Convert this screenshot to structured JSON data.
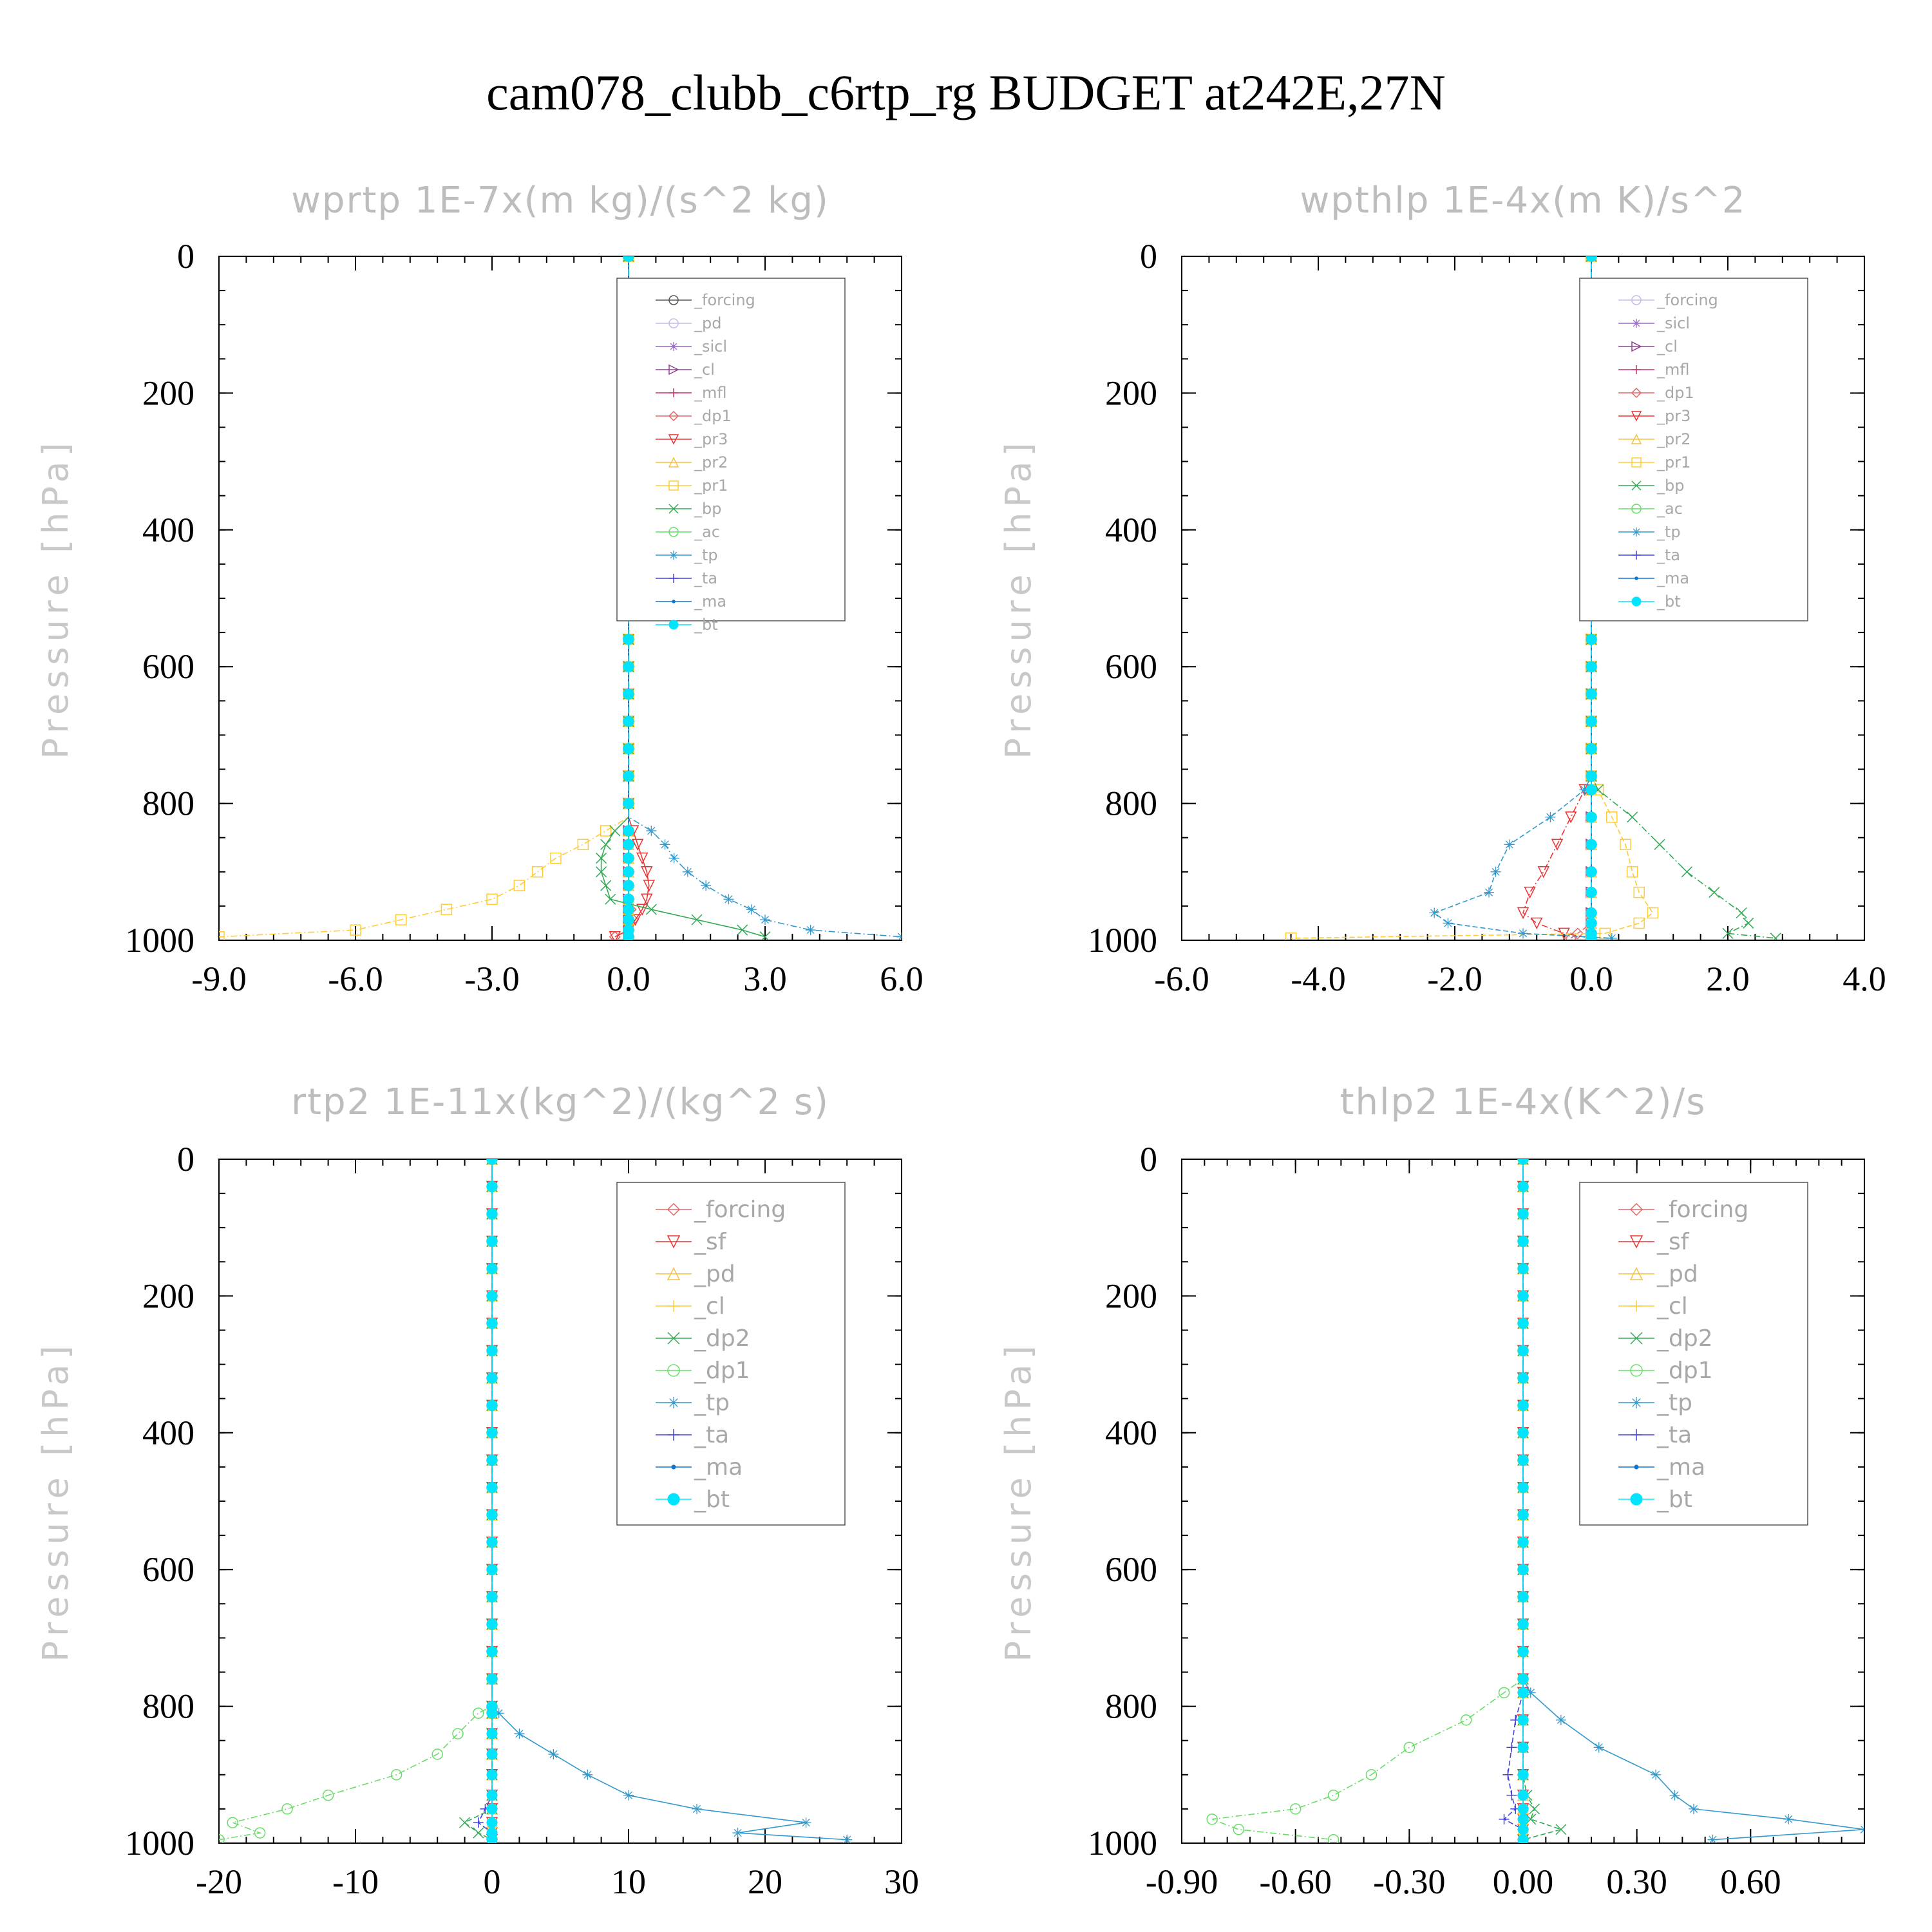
{
  "title": "cam078_clubb_c6rtp_rg  BUDGET at242E,27N",
  "chart_data": [
    {
      "type": "line",
      "title": "wprtp  1E-7x(m kg)/(s^2 kg)",
      "ylabel": "Pressure [hPa]",
      "xlim": [
        -9.0,
        6.0
      ],
      "ylim": [
        1000,
        0
      ],
      "y_inverted": true,
      "xticks": [
        -9.0,
        -6.0,
        -3.0,
        0.0,
        3.0,
        6.0
      ],
      "xtick_labels": [
        "-9.0",
        "-6.0",
        "-3.0",
        "0.0",
        "3.0",
        "6.0"
      ],
      "yticks": [
        0,
        200,
        400,
        600,
        800,
        1000
      ],
      "ytick_labels": [
        "0",
        "200",
        "400",
        "600",
        "800",
        "1000"
      ],
      "legend_position": "upper-right",
      "pressure": [
        840,
        860,
        880,
        900,
        920,
        940,
        955,
        970,
        985,
        995
      ],
      "series": [
        {
          "name": "_forcing",
          "color": "#555555",
          "marker": "o",
          "values": [
            0,
            0,
            0,
            0,
            0,
            0,
            0,
            0,
            0,
            0
          ]
        },
        {
          "name": "_pd",
          "color": "#c9b8e8",
          "marker": "o",
          "values": [
            0,
            0,
            0,
            0,
            0,
            0,
            0,
            0,
            0,
            0
          ]
        },
        {
          "name": "_sicl",
          "color": "#9966cc",
          "marker": "*",
          "values": [
            0,
            0,
            0,
            0,
            0,
            0,
            0,
            0,
            0,
            0
          ]
        },
        {
          "name": "_cl",
          "color": "#8e4490",
          "marker": ">",
          "values": [
            0,
            0,
            0,
            0,
            0,
            0,
            0,
            0,
            0,
            0
          ]
        },
        {
          "name": "_mfl",
          "color": "#cc3366",
          "marker": "+",
          "values": [
            0,
            0,
            0,
            0,
            0,
            0,
            0,
            0,
            0,
            0
          ]
        },
        {
          "name": "_dp1",
          "color": "#e06666",
          "marker": "d",
          "values": [
            0,
            0,
            0,
            0,
            0,
            0,
            0.05,
            0.1,
            0,
            -0.3
          ]
        },
        {
          "name": "_pr3",
          "color": "#ee3333",
          "marker": "v",
          "values": [
            0.1,
            0.2,
            0.3,
            0.4,
            0.45,
            0.4,
            0.3,
            0.15,
            0,
            -0.3
          ]
        },
        {
          "name": "_pr2",
          "color": "#f4c242",
          "marker": "^",
          "values": [
            0,
            0,
            0,
            0,
            0,
            0,
            0,
            0,
            0,
            0
          ]
        },
        {
          "name": "_pr1",
          "color": "#ffcc33",
          "marker": "s",
          "values": [
            -0.5,
            -1.0,
            -1.6,
            -2.0,
            -2.4,
            -3.0,
            -4.0,
            -5.0,
            -6.0,
            -9.0
          ]
        },
        {
          "name": "_bp",
          "color": "#33aa55",
          "marker": "x",
          "values": [
            -0.3,
            -0.5,
            -0.6,
            -0.6,
            -0.5,
            -0.4,
            0.5,
            1.5,
            2.5,
            3.0
          ]
        },
        {
          "name": "_ac",
          "color": "#66dd66",
          "marker": "o",
          "values": [
            0,
            0,
            0,
            0,
            0,
            0,
            0,
            0,
            0,
            0
          ]
        },
        {
          "name": "_tp",
          "color": "#3399cc",
          "marker": "*",
          "values": [
            0.5,
            0.8,
            1.0,
            1.3,
            1.7,
            2.2,
            2.7,
            3.0,
            4.0,
            6.0
          ]
        },
        {
          "name": "_ta",
          "color": "#4444dd",
          "marker": "+",
          "values": [
            0,
            0,
            0,
            0,
            0,
            0,
            0,
            0,
            0,
            0
          ]
        },
        {
          "name": "_ma",
          "color": "#1177cc",
          "marker": ".",
          "values": [
            0,
            0,
            0,
            0,
            0,
            0,
            0,
            0,
            0,
            0
          ]
        },
        {
          "name": "_bt",
          "color": "#00e5ff",
          "marker": "filled-o",
          "values": [
            0,
            0,
            0,
            0,
            0,
            0,
            0,
            0,
            0,
            0
          ]
        }
      ]
    },
    {
      "type": "line",
      "title": "wpthlp  1E-4x(m K)/s^2",
      "ylabel": "Pressure [hPa]",
      "xlim": [
        -6.0,
        4.0
      ],
      "ylim": [
        1000,
        0
      ],
      "y_inverted": true,
      "xticks": [
        -6.0,
        -4.0,
        -2.0,
        0.0,
        2.0,
        4.0
      ],
      "xtick_labels": [
        "-6.0",
        "-4.0",
        "-2.0",
        "0.0",
        "2.0",
        "4.0"
      ],
      "yticks": [
        0,
        200,
        400,
        600,
        800,
        1000
      ],
      "ytick_labels": [
        "0",
        "200",
        "400",
        "600",
        "800",
        "1000"
      ],
      "legend_position": "upper-right",
      "pressure": [
        780,
        820,
        860,
        900,
        930,
        960,
        975,
        990,
        997
      ],
      "series": [
        {
          "name": "_forcing",
          "color": "#c9b8e8",
          "marker": "o",
          "values": [
            0,
            0,
            0,
            0,
            0,
            0,
            0,
            0,
            0
          ]
        },
        {
          "name": "_sicl",
          "color": "#9966cc",
          "marker": "*",
          "values": [
            0,
            0,
            0,
            0,
            0,
            0,
            0,
            0,
            0
          ]
        },
        {
          "name": "_cl",
          "color": "#8e4490",
          "marker": ">",
          "values": [
            0,
            0,
            0,
            0,
            0,
            0,
            0,
            0,
            0
          ]
        },
        {
          "name": "_mfl",
          "color": "#cc3366",
          "marker": "+",
          "values": [
            0,
            0,
            0,
            0,
            0,
            0,
            0,
            0,
            0
          ]
        },
        {
          "name": "_dp1",
          "color": "#e06666",
          "marker": "d",
          "values": [
            0,
            0,
            0,
            0,
            0,
            0,
            0,
            -0.2,
            -0.3
          ]
        },
        {
          "name": "_pr3",
          "color": "#ee3333",
          "marker": "v",
          "values": [
            -0.1,
            -0.3,
            -0.5,
            -0.7,
            -0.9,
            -1.0,
            -0.8,
            -0.4,
            0
          ]
        },
        {
          "name": "_pr2",
          "color": "#f4c242",
          "marker": "^",
          "values": [
            0,
            0,
            0,
            0,
            0,
            0,
            0,
            0,
            0
          ]
        },
        {
          "name": "_pr1",
          "color": "#ffcc33",
          "marker": "s",
          "values": [
            0.1,
            0.3,
            0.5,
            0.6,
            0.7,
            0.9,
            0.7,
            0.2,
            -4.4
          ]
        },
        {
          "name": "_bp",
          "color": "#33aa55",
          "marker": "x",
          "values": [
            0.1,
            0.6,
            1.0,
            1.4,
            1.8,
            2.2,
            2.3,
            2.0,
            2.7
          ]
        },
        {
          "name": "_ac",
          "color": "#66dd66",
          "marker": "o",
          "values": [
            0,
            0,
            0,
            0,
            0,
            0,
            0,
            0,
            0
          ]
        },
        {
          "name": "_tp",
          "color": "#3399cc",
          "marker": "*",
          "values": [
            -0.1,
            -0.6,
            -1.2,
            -1.4,
            -1.5,
            -2.3,
            -2.1,
            -1.0,
            0.3
          ]
        },
        {
          "name": "_ta",
          "color": "#4444dd",
          "marker": "+",
          "values": [
            0,
            0,
            0,
            0,
            0,
            0,
            0,
            0,
            0
          ]
        },
        {
          "name": "_ma",
          "color": "#1177cc",
          "marker": ".",
          "values": [
            0,
            0,
            0,
            0,
            0,
            0,
            0,
            0,
            0
          ]
        },
        {
          "name": "_bt",
          "color": "#00e5ff",
          "marker": "filled-o",
          "values": [
            0,
            0,
            0,
            0,
            0,
            0,
            0,
            0,
            0
          ]
        }
      ]
    },
    {
      "type": "line",
      "title": "rtp2  1E-11x(kg^2)/(kg^2 s)",
      "ylabel": "Pressure [hPa]",
      "xlim": [
        -20,
        30
      ],
      "ylim": [
        1000,
        0
      ],
      "y_inverted": true,
      "xticks": [
        -20,
        -10,
        0,
        10,
        20,
        30
      ],
      "xtick_labels": [
        "-20",
        "-10",
        "0",
        "10",
        "20",
        "30"
      ],
      "yticks": [
        0,
        200,
        400,
        600,
        800,
        1000
      ],
      "ytick_labels": [
        "0",
        "200",
        "400",
        "600",
        "800",
        "1000"
      ],
      "legend_position": "upper-right",
      "pressure": [
        810,
        840,
        870,
        900,
        930,
        950,
        970,
        985,
        995
      ],
      "series": [
        {
          "name": "_forcing",
          "color": "#e06666",
          "marker": "d",
          "values": [
            0,
            0,
            0,
            0,
            0,
            0,
            0,
            0,
            0
          ]
        },
        {
          "name": "_sf",
          "color": "#ee3333",
          "marker": "v",
          "values": [
            0,
            0,
            0,
            0,
            0,
            0,
            0,
            0,
            0
          ]
        },
        {
          "name": "_pd",
          "color": "#f4c242",
          "marker": "^",
          "values": [
            0,
            0,
            0,
            0,
            0,
            0,
            0,
            0,
            0
          ]
        },
        {
          "name": "_cl",
          "color": "#ffcc33",
          "marker": "+",
          "values": [
            0,
            0,
            0,
            0,
            0,
            0,
            0,
            0,
            0
          ]
        },
        {
          "name": "_dp2",
          "color": "#33aa55",
          "marker": "x",
          "values": [
            0,
            0,
            0,
            0,
            0,
            0,
            -2,
            -1,
            0
          ]
        },
        {
          "name": "_dp1",
          "color": "#66dd66",
          "marker": "o",
          "values": [
            -1,
            -2.5,
            -4,
            -7,
            -12,
            -15,
            -19,
            -17,
            -20
          ]
        },
        {
          "name": "_tp",
          "color": "#3399cc",
          "marker": "*",
          "values": [
            0.5,
            2,
            4.5,
            7,
            10,
            15,
            23,
            18,
            26
          ]
        },
        {
          "name": "_ta",
          "color": "#4444dd",
          "marker": "+",
          "values": [
            0,
            0,
            0,
            0,
            0,
            -0.5,
            -1,
            0,
            0
          ]
        },
        {
          "name": "_ma",
          "color": "#1177cc",
          "marker": ".",
          "values": [
            0,
            0,
            0,
            0,
            0,
            0,
            0,
            0,
            0
          ]
        },
        {
          "name": "_bt",
          "color": "#00e5ff",
          "marker": "filled-o",
          "values": [
            0,
            0,
            0,
            0,
            0,
            0,
            0,
            0,
            0
          ]
        }
      ]
    },
    {
      "type": "line",
      "title": "thlp2  1E-4x(K^2)/s",
      "ylabel": "Pressure [hPa]",
      "xlim": [
        -0.9,
        0.9
      ],
      "ylim": [
        1000,
        0
      ],
      "y_inverted": true,
      "xticks": [
        -0.9,
        -0.6,
        -0.3,
        0.0,
        0.3,
        0.6
      ],
      "xtick_labels": [
        "-0.90",
        "-0.60",
        "-0.30",
        "0.00",
        "0.30",
        "0.60"
      ],
      "yticks": [
        0,
        200,
        400,
        600,
        800,
        1000
      ],
      "ytick_labels": [
        "0",
        "200",
        "400",
        "600",
        "800",
        "1000"
      ],
      "legend_position": "upper-right",
      "pressure": [
        780,
        820,
        860,
        900,
        930,
        950,
        965,
        980,
        995
      ],
      "series": [
        {
          "name": "_forcing",
          "color": "#e06666",
          "marker": "d",
          "values": [
            0,
            0,
            0,
            0,
            0,
            0,
            0,
            0,
            0
          ]
        },
        {
          "name": "_sf",
          "color": "#ee3333",
          "marker": "v",
          "values": [
            0,
            0,
            0,
            0,
            0,
            0,
            0,
            0,
            0
          ]
        },
        {
          "name": "_pd",
          "color": "#f4c242",
          "marker": "^",
          "values": [
            0,
            0,
            0,
            0,
            0,
            0,
            0,
            0,
            0
          ]
        },
        {
          "name": "_cl",
          "color": "#ffcc33",
          "marker": "+",
          "values": [
            0,
            0,
            0,
            0,
            0,
            0,
            0,
            0,
            0
          ]
        },
        {
          "name": "_dp2",
          "color": "#33aa55",
          "marker": "x",
          "values": [
            0,
            0,
            0,
            0,
            0.01,
            0.03,
            0.02,
            0.1,
            0
          ]
        },
        {
          "name": "_dp1",
          "color": "#66dd66",
          "marker": "o",
          "values": [
            -0.05,
            -0.15,
            -0.3,
            -0.4,
            -0.5,
            -0.6,
            -0.82,
            -0.75,
            -0.5
          ]
        },
        {
          "name": "_tp",
          "color": "#3399cc",
          "marker": "*",
          "values": [
            0.02,
            0.1,
            0.2,
            0.35,
            0.4,
            0.45,
            0.7,
            0.9,
            0.5
          ]
        },
        {
          "name": "_ta",
          "color": "#4444dd",
          "marker": "+",
          "values": [
            0,
            -0.02,
            -0.03,
            -0.04,
            -0.03,
            -0.02,
            -0.05,
            0,
            0
          ]
        },
        {
          "name": "_ma",
          "color": "#1177cc",
          "marker": ".",
          "values": [
            0,
            0,
            0,
            0,
            0,
            0,
            0,
            0,
            0
          ]
        },
        {
          "name": "_bt",
          "color": "#00e5ff",
          "marker": "filled-o",
          "values": [
            0,
            0,
            0,
            0,
            0,
            0,
            0,
            0,
            0
          ]
        }
      ]
    }
  ]
}
